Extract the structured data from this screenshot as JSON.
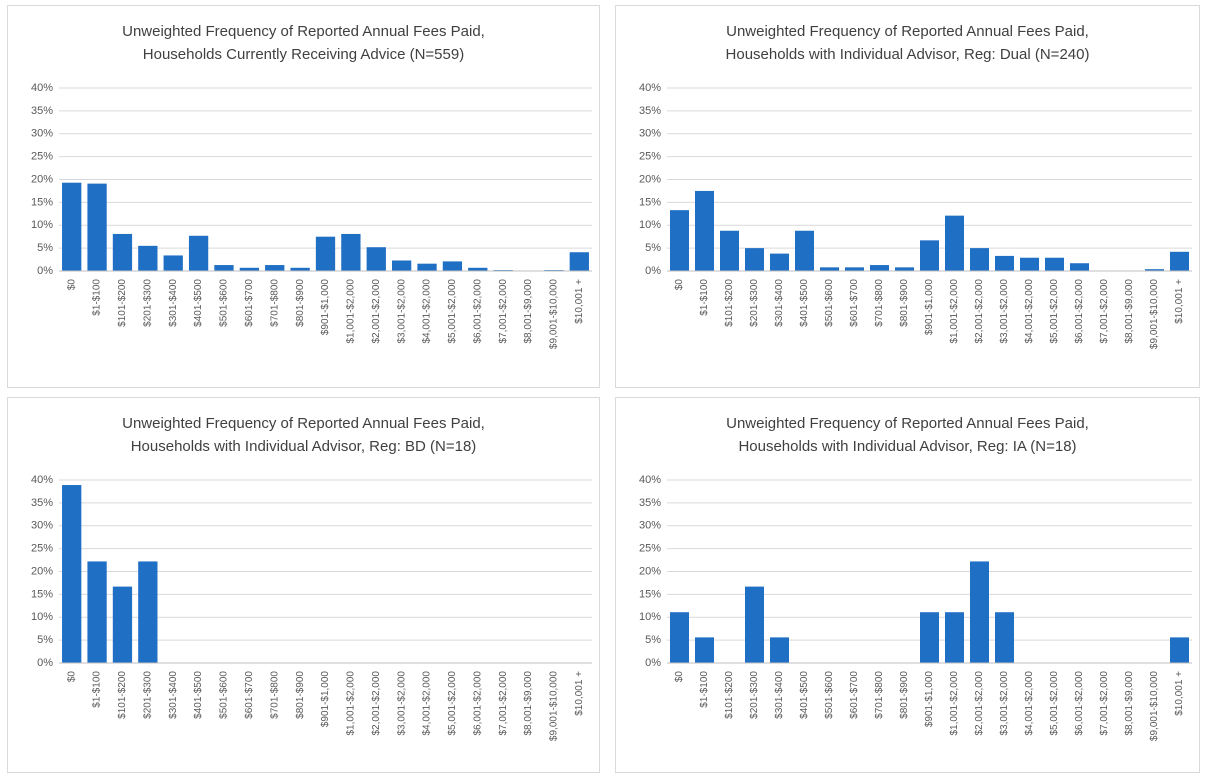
{
  "chart_data": [
    {
      "type": "bar",
      "title": "Unweighted Frequency of Reported Annual Fees Paid,",
      "subtitle": "Households Currently Receiving Advice (N=559)",
      "categories": [
        "$0",
        "$1-$100",
        "$101-$200",
        "$201-$300",
        "$301-$400",
        "$401-$500",
        "$501-$600",
        "$601-$700",
        "$701-$800",
        "$801-$900",
        "$901-$1,000",
        "$1,001-$2,000",
        "$2,001-$2,000",
        "$3,001-$2,000",
        "$4,001-$2,000",
        "$5,001-$2,000",
        "$6,001-$2,000",
        "$7,001-$2,000",
        "$8,001-$9,000",
        "$9,001-$10,000",
        "$10,001 +"
      ],
      "values": [
        19.3,
        19.1,
        8.1,
        5.5,
        3.4,
        7.7,
        1.3,
        0.7,
        1.3,
        0.7,
        7.5,
        8.1,
        5.2,
        2.3,
        1.6,
        2.1,
        0.7,
        0.2,
        0,
        0.2,
        4.1
      ],
      "color": "#1f6fc5",
      "ylim": [
        0,
        40
      ],
      "yticks": [
        {
          "value": 0,
          "label": "0%"
        },
        {
          "value": 5,
          "label": "5%"
        },
        {
          "value": 10,
          "label": "10%"
        },
        {
          "value": 15,
          "label": "15%"
        },
        {
          "value": 20,
          "label": "20%"
        },
        {
          "value": 25,
          "label": "25%"
        },
        {
          "value": 30,
          "label": "30%"
        },
        {
          "value": 35,
          "label": "35%"
        },
        {
          "value": 40,
          "label": "40%"
        }
      ],
      "grid": true
    },
    {
      "type": "bar",
      "title": "Unweighted Frequency of Reported Annual Fees Paid,",
      "subtitle": "Households with Individual Advisor, Reg: Dual (N=240)",
      "categories": [
        "$0",
        "$1-$100",
        "$101-$200",
        "$201-$300",
        "$301-$400",
        "$401-$500",
        "$501-$600",
        "$601-$700",
        "$701-$800",
        "$801-$900",
        "$901-$1,000",
        "$1,001-$2,000",
        "$2,001-$2,000",
        "$3,001-$2,000",
        "$4,001-$2,000",
        "$5,001-$2,000",
        "$6,001-$2,000",
        "$7,001-$2,000",
        "$8,001-$9,000",
        "$9,001-$10,000",
        "$10,001 +"
      ],
      "values": [
        13.3,
        17.5,
        8.8,
        5.0,
        3.8,
        8.8,
        0.8,
        0.8,
        1.3,
        0.8,
        6.7,
        12.1,
        5.0,
        3.3,
        2.9,
        2.9,
        1.7,
        0,
        0,
        0.4,
        4.2
      ],
      "color": "#1f6fc5",
      "ylim": [
        0,
        40
      ],
      "yticks": [
        {
          "value": 0,
          "label": "0%"
        },
        {
          "value": 5,
          "label": "5%"
        },
        {
          "value": 10,
          "label": "10%"
        },
        {
          "value": 15,
          "label": "15%"
        },
        {
          "value": 20,
          "label": "20%"
        },
        {
          "value": 25,
          "label": "25%"
        },
        {
          "value": 30,
          "label": "30%"
        },
        {
          "value": 35,
          "label": "35%"
        },
        {
          "value": 40,
          "label": "40%"
        }
      ],
      "grid": true
    },
    {
      "type": "bar",
      "title": "Unweighted Frequency of Reported Annual Fees Paid,",
      "subtitle": "Households with Individual Advisor, Reg: BD (N=18)",
      "categories": [
        "$0",
        "$1-$100",
        "$101-$200",
        "$201-$300",
        "$301-$400",
        "$401-$500",
        "$501-$600",
        "$601-$700",
        "$701-$800",
        "$801-$900",
        "$901-$1,000",
        "$1,001-$2,000",
        "$2,001-$2,000",
        "$3,001-$2,000",
        "$4,001-$2,000",
        "$5,001-$2,000",
        "$6,001-$2,000",
        "$7,001-$2,000",
        "$8,001-$9,000",
        "$9,001-$10,000",
        "$10,001 +"
      ],
      "values": [
        38.9,
        22.2,
        16.7,
        22.2,
        0,
        0,
        0,
        0,
        0,
        0,
        0,
        0,
        0,
        0,
        0,
        0,
        0,
        0,
        0,
        0,
        0
      ],
      "color": "#1f6fc5",
      "ylim": [
        0,
        40
      ],
      "yticks": [
        {
          "value": 0,
          "label": "0%"
        },
        {
          "value": 5,
          "label": "5%"
        },
        {
          "value": 10,
          "label": "10%"
        },
        {
          "value": 15,
          "label": "15%"
        },
        {
          "value": 20,
          "label": "20%"
        },
        {
          "value": 25,
          "label": "25%"
        },
        {
          "value": 30,
          "label": "30%"
        },
        {
          "value": 35,
          "label": "35%"
        },
        {
          "value": 40,
          "label": "40%"
        }
      ],
      "grid": true
    },
    {
      "type": "bar",
      "title": "Unweighted Frequency of Reported Annual Fees Paid,",
      "subtitle": "Households with Individual Advisor, Reg: IA (N=18)",
      "categories": [
        "$0",
        "$1-$100",
        "$101-$200",
        "$201-$300",
        "$301-$400",
        "$401-$500",
        "$501-$600",
        "$601-$700",
        "$701-$800",
        "$801-$900",
        "$901-$1,000",
        "$1,001-$2,000",
        "$2,001-$2,000",
        "$3,001-$2,000",
        "$4,001-$2,000",
        "$5,001-$2,000",
        "$6,001-$2,000",
        "$7,001-$2,000",
        "$8,001-$9,000",
        "$9,001-$10,000",
        "$10,001 +"
      ],
      "values": [
        11.1,
        5.6,
        0,
        16.7,
        5.6,
        0,
        0,
        0,
        0,
        0,
        11.1,
        11.1,
        22.2,
        11.1,
        0,
        0,
        0,
        0,
        0,
        0,
        5.6
      ],
      "color": "#1f6fc5",
      "ylim": [
        0,
        40
      ],
      "yticks": [
        {
          "value": 0,
          "label": "0%"
        },
        {
          "value": 5,
          "label": "5%"
        },
        {
          "value": 10,
          "label": "10%"
        },
        {
          "value": 15,
          "label": "15%"
        },
        {
          "value": 20,
          "label": "20%"
        },
        {
          "value": 25,
          "label": "25%"
        },
        {
          "value": 30,
          "label": "30%"
        },
        {
          "value": 35,
          "label": "35%"
        },
        {
          "value": 40,
          "label": "40%"
        }
      ],
      "grid": true
    }
  ]
}
